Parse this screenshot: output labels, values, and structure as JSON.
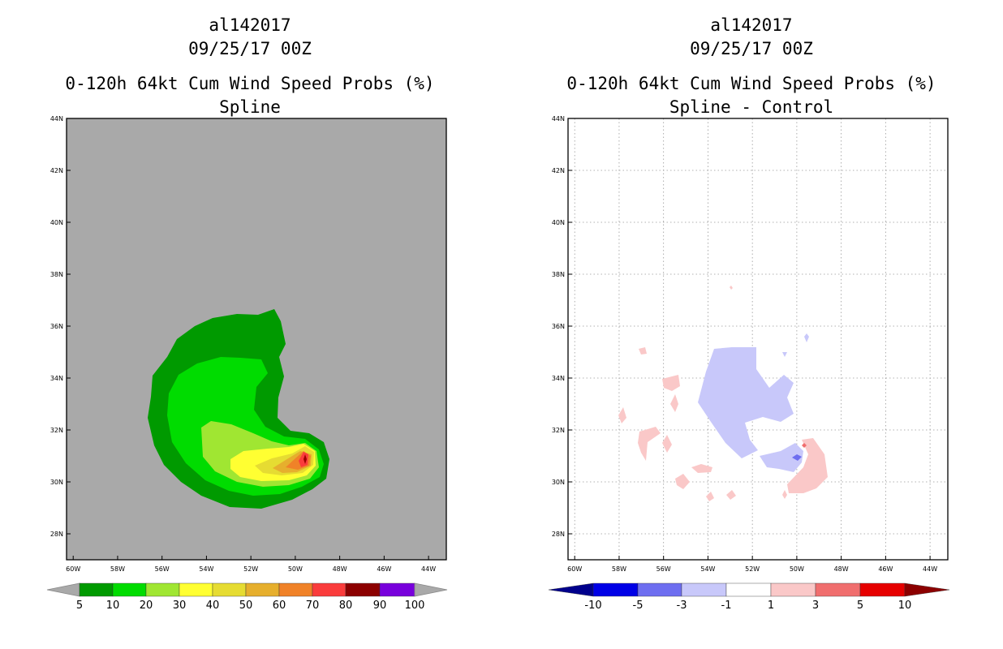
{
  "chart_data": [
    {
      "type": "contour-map",
      "id": "al142017",
      "date": "09/25/17 00Z",
      "title": "0-120h 64kt Cum Wind Speed Probs (%)",
      "subtitle": "Spline",
      "x_ticks": [
        "60W",
        "58W",
        "56W",
        "54W",
        "52W",
        "50W",
        "48W",
        "46W",
        "44W"
      ],
      "y_ticks": [
        "44N",
        "42N",
        "40N",
        "38N",
        "36N",
        "34N",
        "32N",
        "30N",
        "28N"
      ],
      "xlim_deg_west": [
        60.3,
        43.2
      ],
      "ylim_deg_north": [
        27,
        44
      ],
      "grid": false,
      "background": "#a9a9a9",
      "colorbar": {
        "labels": [
          "5",
          "10",
          "20",
          "30",
          "40",
          "50",
          "60",
          "70",
          "80",
          "90",
          "100"
        ],
        "colors": [
          "#009a00",
          "#00dc00",
          "#a0e632",
          "#ffff32",
          "#e6dc32",
          "#e6af2d",
          "#f08228",
          "#fa3c3c",
          "#a00000",
          "#820000",
          "#8c00d2",
          "#7800dc"
        ],
        "end_color": "#a9a9a9"
      },
      "max_probability_location": {
        "lon_w": 49.4,
        "lat_n": 31.0,
        "range": "80-90"
      }
    },
    {
      "type": "contour-map",
      "id": "al142017",
      "date": "09/25/17 00Z",
      "title": "0-120h 64kt Cum Wind Speed Probs (%)",
      "subtitle": "Spline - Control",
      "x_ticks": [
        "60W",
        "58W",
        "56W",
        "54W",
        "52W",
        "50W",
        "48W",
        "46W",
        "44W"
      ],
      "y_ticks": [
        "44N",
        "42N",
        "40N",
        "38N",
        "36N",
        "34N",
        "32N",
        "30N",
        "28N"
      ],
      "xlim_deg_west": [
        60.3,
        43.2
      ],
      "ylim_deg_north": [
        27,
        44
      ],
      "grid": true,
      "background": "#ffffff",
      "colorbar": {
        "labels": [
          "-10",
          "-5",
          "-3",
          "-1",
          "1",
          "3",
          "5",
          "10"
        ],
        "colors": [
          "#00008c",
          "#0000e6",
          "#6e6ef0",
          "#c8c8fa",
          "#ffffff",
          "#fac8c8",
          "#f06e6e",
          "#e60000",
          "#8c0000"
        ]
      },
      "negative_region_center": {
        "lon_w": 52.5,
        "lat_n": 33.5
      },
      "positive_region_center": {
        "lon_w": 49.0,
        "lat_n": 30.5
      }
    }
  ]
}
